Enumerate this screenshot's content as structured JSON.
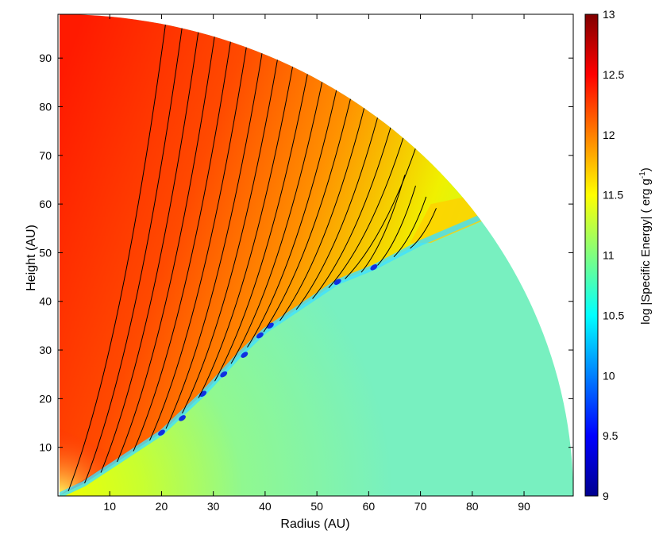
{
  "chart_data": {
    "type": "heatmap",
    "xlabel": "Radius (AU)",
    "ylabel": "Height (AU)",
    "xlim": [
      0,
      99.5
    ],
    "ylim": [
      0,
      99
    ],
    "xticks": [
      10,
      20,
      30,
      40,
      50,
      60,
      70,
      80,
      90
    ],
    "yticks": [
      10,
      20,
      30,
      40,
      50,
      60,
      70,
      80,
      90
    ],
    "colorbar": {
      "label": "log |Specific Energy| ( erg g",
      "label_sup": "-1",
      "label_tail": ")",
      "lim": [
        9,
        13
      ],
      "ticks": [
        9,
        9.5,
        10,
        10.5,
        11,
        11.5,
        12,
        12.5,
        13
      ],
      "colormap": "jet"
    }
  }
}
